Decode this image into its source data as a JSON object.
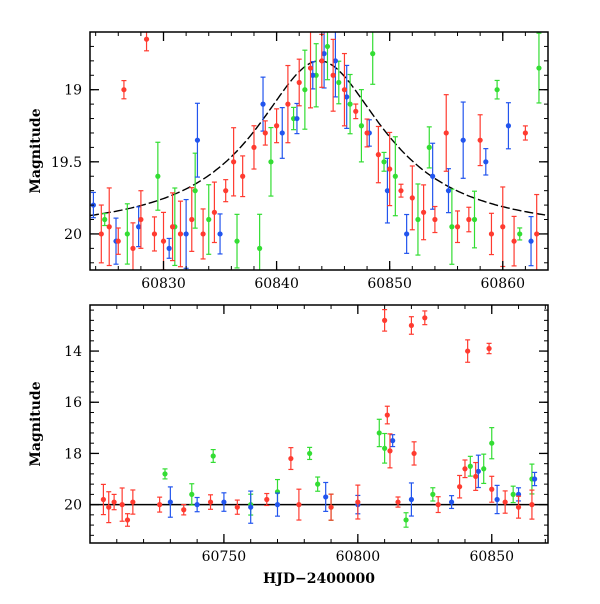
{
  "colors": {
    "red": "#ff3b30",
    "green": "#33dd33",
    "blue": "#2255ee",
    "model": "#000000"
  },
  "chart_data": [
    {
      "type": "scatter",
      "panel": "top",
      "xlabel": "",
      "ylabel": "Magnitude",
      "xlim": [
        60823.5,
        60864
      ],
      "ylim": [
        20.25,
        18.6
      ],
      "y_inverted": true,
      "xticks": [
        60830,
        60840,
        60850,
        60860
      ],
      "yticks": [
        19,
        19.5,
        20
      ],
      "ytick_labels": [
        "19",
        "19.5",
        "20"
      ],
      "grid": false,
      "model_curve": {
        "type": "point-lens microlensing",
        "t0": 60843.8,
        "peak_mag": 18.8,
        "baseline_mag": 20.0,
        "tE": 7
      },
      "series": [
        {
          "color_key": "red",
          "points": [
            [
              60824.5,
              20.0
            ],
            [
              60825.2,
              19.95
            ],
            [
              60826.0,
              20.05
            ],
            [
              60826.5,
              19.0
            ],
            [
              60827.3,
              20.1
            ],
            [
              60828.0,
              19.9
            ],
            [
              60828.5,
              18.65
            ],
            [
              60829.2,
              20.0
            ],
            [
              60830.0,
              20.05
            ],
            [
              60830.8,
              19.95
            ],
            [
              60831.5,
              20.0
            ],
            [
              60832.5,
              19.9
            ],
            [
              60833.5,
              20.0
            ],
            [
              60834.5,
              19.85
            ],
            [
              60835.5,
              19.7
            ],
            [
              60836.2,
              19.5
            ],
            [
              60837.0,
              19.6
            ],
            [
              60838.0,
              19.4
            ],
            [
              60839.0,
              19.3
            ],
            [
              60840.0,
              19.25
            ],
            [
              60841.0,
              19.1
            ],
            [
              60842.0,
              18.95
            ],
            [
              60843.0,
              18.85
            ],
            [
              60844.0,
              18.8
            ],
            [
              60845.0,
              18.9
            ],
            [
              60846.0,
              19.0
            ],
            [
              60847.0,
              19.15
            ],
            [
              60848.0,
              19.3
            ],
            [
              60849.0,
              19.45
            ],
            [
              60850.0,
              19.55
            ],
            [
              60851.0,
              19.7
            ],
            [
              60852.0,
              19.75
            ],
            [
              60853.0,
              19.85
            ],
            [
              60854.0,
              19.9
            ],
            [
              60855.0,
              19.3
            ],
            [
              60856.0,
              19.95
            ],
            [
              60857.0,
              19.9
            ],
            [
              60858.0,
              19.35
            ],
            [
              60859.0,
              20.0
            ],
            [
              60860.0,
              19.95
            ],
            [
              60861.0,
              20.05
            ],
            [
              60862.0,
              19.3
            ],
            [
              60863.0,
              20.0
            ]
          ]
        },
        {
          "color_key": "green",
          "points": [
            [
              60824.8,
              19.9
            ],
            [
              60826.8,
              20.0
            ],
            [
              60829.5,
              19.6
            ],
            [
              60831.0,
              19.95
            ],
            [
              60832.8,
              19.7
            ],
            [
              60834.0,
              19.9
            ],
            [
              60836.5,
              20.05
            ],
            [
              60838.5,
              20.1
            ],
            [
              60839.5,
              19.5
            ],
            [
              60841.5,
              19.2
            ],
            [
              60842.5,
              19.0
            ],
            [
              60843.5,
              18.9
            ],
            [
              60844.5,
              18.7
            ],
            [
              60845.5,
              18.95
            ],
            [
              60846.5,
              19.1
            ],
            [
              60847.5,
              19.25
            ],
            [
              60848.5,
              18.75
            ],
            [
              60849.5,
              19.5
            ],
            [
              60850.5,
              19.6
            ],
            [
              60852.5,
              19.9
            ],
            [
              60853.5,
              19.4
            ],
            [
              60855.5,
              19.95
            ],
            [
              60857.5,
              19.9
            ],
            [
              60859.5,
              19.0
            ],
            [
              60861.5,
              20.0
            ],
            [
              60863.2,
              18.85
            ]
          ]
        },
        {
          "color_key": "blue",
          "points": [
            [
              60823.8,
              19.8
            ],
            [
              60825.8,
              20.05
            ],
            [
              60827.8,
              19.95
            ],
            [
              60830.5,
              20.1
            ],
            [
              60832.0,
              20.0
            ],
            [
              60833.0,
              19.35
            ],
            [
              60835.0,
              20.0
            ],
            [
              60838.8,
              19.1
            ],
            [
              60840.5,
              19.3
            ],
            [
              60841.8,
              19.2
            ],
            [
              60843.2,
              18.9
            ],
            [
              60844.2,
              18.75
            ],
            [
              60845.2,
              18.8
            ],
            [
              60846.2,
              19.05
            ],
            [
              60848.2,
              19.3
            ],
            [
              60849.8,
              19.7
            ],
            [
              60851.5,
              20.0
            ],
            [
              60853.8,
              19.6
            ],
            [
              60855.2,
              19.7
            ],
            [
              60856.5,
              19.35
            ],
            [
              60858.5,
              19.5
            ],
            [
              60860.5,
              19.25
            ],
            [
              60862.5,
              20.05
            ]
          ]
        }
      ]
    },
    {
      "type": "scatter",
      "panel": "bottom",
      "xlabel": "HJD−2400000",
      "ylabel": "Magnitude",
      "xlim": [
        60700,
        60871
      ],
      "ylim": [
        21.5,
        12.2
      ],
      "y_inverted": true,
      "xticks": [
        60750,
        60800,
        60850
      ],
      "yticks": [
        14,
        16,
        18,
        20
      ],
      "grid": false,
      "baseline_mag": 20.0,
      "series": [
        {
          "color_key": "red",
          "points": [
            [
              60705,
              19.8
            ],
            [
              60707,
              20.1
            ],
            [
              60709,
              19.9
            ],
            [
              60712,
              20.0
            ],
            [
              60714,
              20.6
            ],
            [
              60716,
              19.9
            ],
            [
              60726,
              20.0
            ],
            [
              60735,
              20.2
            ],
            [
              60745,
              19.9
            ],
            [
              60755,
              20.1
            ],
            [
              60766,
              19.8
            ],
            [
              60775,
              18.2
            ],
            [
              60778,
              20.0
            ],
            [
              60790,
              20.1
            ],
            [
              60800,
              19.9
            ],
            [
              60810,
              12.8
            ],
            [
              60811,
              16.5
            ],
            [
              60812,
              17.9
            ],
            [
              60815,
              19.9
            ],
            [
              60820,
              13.0
            ],
            [
              60821,
              18.0
            ],
            [
              60825,
              12.7
            ],
            [
              60830,
              20.0
            ],
            [
              60838,
              19.3
            ],
            [
              60840,
              18.6
            ],
            [
              60841,
              14.0
            ],
            [
              60844,
              18.9
            ],
            [
              60849,
              13.9
            ],
            [
              60850,
              19.4
            ],
            [
              60855,
              19.9
            ],
            [
              60860,
              20.1
            ],
            [
              60865,
              20.0
            ]
          ]
        },
        {
          "color_key": "green",
          "points": [
            [
              60728,
              18.8
            ],
            [
              60738,
              19.6
            ],
            [
              60746,
              18.1
            ],
            [
              60760,
              20.0
            ],
            [
              60770,
              19.5
            ],
            [
              60782,
              18.0
            ],
            [
              60785,
              19.2
            ],
            [
              60790,
              20.1
            ],
            [
              60808,
              17.2
            ],
            [
              60810,
              17.8
            ],
            [
              60818,
              20.6
            ],
            [
              60828,
              19.6
            ],
            [
              60842,
              18.5
            ],
            [
              60847,
              18.6
            ],
            [
              60850,
              17.6
            ],
            [
              60858,
              19.6
            ],
            [
              60865,
              19.0
            ]
          ]
        },
        {
          "color_key": "blue",
          "points": [
            [
              60730,
              19.9
            ],
            [
              60740,
              20.0
            ],
            [
              60750,
              19.9
            ],
            [
              60760,
              20.1
            ],
            [
              60770,
              20.0
            ],
            [
              60788,
              19.7
            ],
            [
              60800,
              20.0
            ],
            [
              60813,
              17.5
            ],
            [
              60820,
              19.8
            ],
            [
              60835,
              19.9
            ],
            [
              60845,
              18.7
            ],
            [
              60852,
              19.8
            ],
            [
              60860,
              19.6
            ],
            [
              60866,
              19.0
            ]
          ]
        }
      ]
    }
  ]
}
